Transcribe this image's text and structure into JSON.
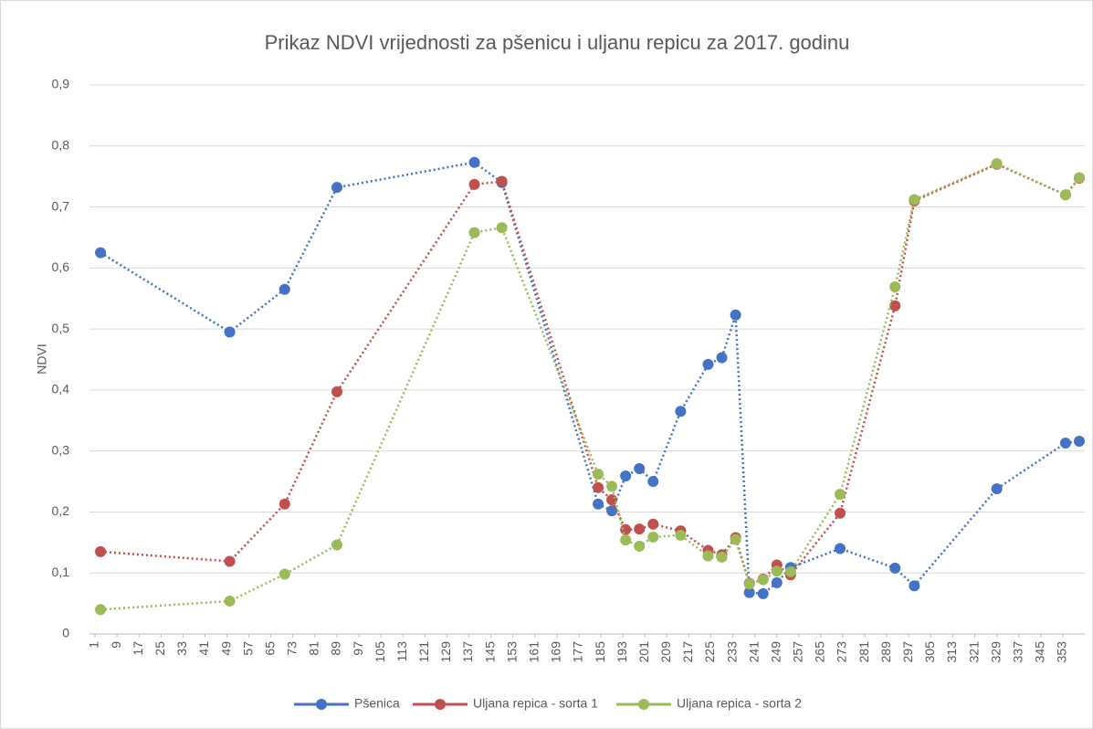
{
  "chart_data": {
    "type": "line",
    "title": "Prikaz NDVI vrijednosti za pšenicu i uljanu repicu za 2017. godinu",
    "y_label": "NDVI",
    "x": [
      3,
      50,
      70,
      89,
      139,
      149,
      184,
      189,
      194,
      199,
      204,
      214,
      224,
      229,
      234,
      239,
      244,
      249,
      254,
      272,
      292,
      299,
      329,
      354,
      359
    ],
    "series": [
      {
        "name": "Pšenica",
        "color": "#4472c4",
        "values": [
          0.625,
          0.495,
          0.565,
          0.732,
          0.773,
          0.74,
          0.213,
          0.202,
          0.259,
          0.271,
          0.25,
          0.365,
          0.442,
          0.453,
          0.523,
          0.068,
          0.066,
          0.084,
          0.109,
          0.14,
          0.108,
          0.079,
          0.238,
          0.313,
          0.316
        ]
      },
      {
        "name": "Uljana repica - sorta 1",
        "color": "#c0504d",
        "values": [
          0.135,
          0.119,
          0.213,
          0.397,
          0.737,
          0.742,
          0.24,
          0.22,
          0.171,
          0.172,
          0.18,
          0.169,
          0.137,
          0.13,
          0.158,
          0.083,
          0.09,
          0.113,
          0.097,
          0.198,
          0.538,
          0.71,
          0.77,
          0.72,
          0.747
        ]
      },
      {
        "name": "Uljana repica - sorta 2",
        "color": "#9bbb59",
        "values": [
          0.04,
          0.054,
          0.098,
          0.146,
          0.658,
          0.666,
          0.262,
          0.242,
          0.154,
          0.144,
          0.159,
          0.162,
          0.128,
          0.126,
          0.155,
          0.082,
          0.089,
          0.103,
          0.102,
          0.229,
          0.569,
          0.712,
          0.771,
          0.72,
          0.748
        ]
      }
    ],
    "xlim": [
      -1,
      361
    ],
    "xticks": [
      1,
      9,
      17,
      25,
      33,
      41,
      49,
      57,
      65,
      73,
      81,
      89,
      97,
      105,
      113,
      121,
      129,
      137,
      145,
      153,
      161,
      169,
      177,
      185,
      193,
      201,
      209,
      217,
      225,
      233,
      241,
      249,
      257,
      265,
      273,
      281,
      289,
      297,
      305,
      313,
      321,
      329,
      337,
      345,
      353
    ],
    "ylim": [
      0,
      0.9
    ],
    "yticks": [
      0,
      {
        "value": 0.1,
        "label": "0,1"
      },
      {
        "value": 0.2,
        "label": "0,2"
      },
      {
        "value": 0.3,
        "label": "0,3"
      },
      {
        "value": 0.4,
        "label": "0,4"
      },
      {
        "value": 0.5,
        "label": "0,5"
      },
      {
        "value": 0.6,
        "label": "0,6"
      },
      {
        "value": 0.7,
        "label": "0,7"
      },
      {
        "value": 0.8,
        "label": "0,8"
      },
      {
        "value": 0.9,
        "label": "0,9"
      }
    ],
    "grid": true,
    "legend": "bottom",
    "line_style": "dotted"
  }
}
